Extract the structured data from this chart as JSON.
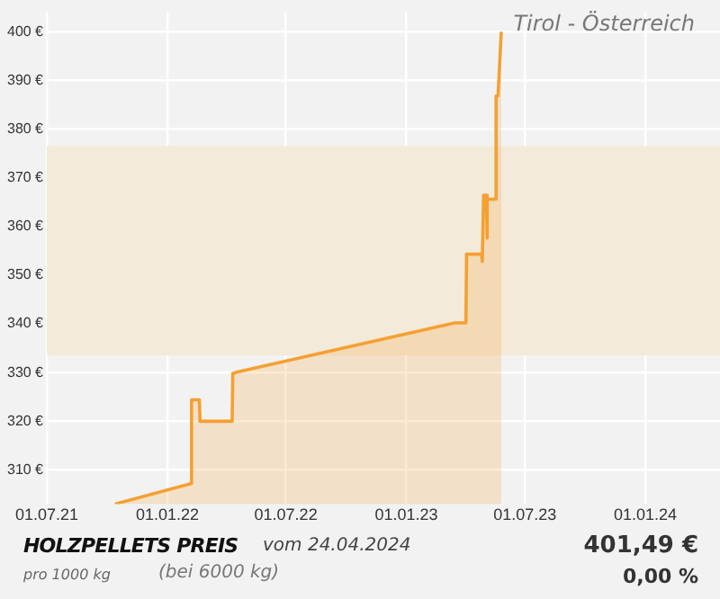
{
  "chart_data": {
    "type": "area",
    "title": "HOLZPELLETS PREIS",
    "subtitle": "vom 24.04.2024",
    "annotations": [
      "Tirol - Österreich",
      "pro 1000 kg",
      "(bei 6000 kg)",
      "401,49 €",
      "0,00 %"
    ],
    "x": [
      "2021-10-13",
      "2022-02-06",
      "2022-02-07",
      "2022-02-19",
      "2022-02-20",
      "2022-04-10",
      "2022-04-11",
      "2022-04-20",
      "2023-03-16",
      "2023-04-02",
      "2023-04-03",
      "2023-04-26",
      "2023-04-27",
      "2023-04-29",
      "2023-05-03",
      "2023-05-04",
      "2023-05-05",
      "2023-05-17",
      "2023-05-18",
      "2023-05-21",
      "2023-05-26"
    ],
    "series": [
      {
        "color": "#f5a032",
        "values": [
          303,
          307.2,
          324.4,
          324.4,
          320,
          320,
          329.8,
          330.2,
          340.2,
          340.2,
          354.3,
          354.3,
          352.8,
          366.4,
          366.4,
          357.6,
          365.6,
          365.6,
          386.8,
          386.8,
          400
        ]
      }
    ],
    "xlim": [
      "2021-07-01",
      "2024-04-24"
    ],
    "xticks": [
      {
        "value": "2021-07-01",
        "label": "01.07.21"
      },
      {
        "value": "2022-01-01",
        "label": "01.01.22"
      },
      {
        "value": "2022-07-01",
        "label": "01.07.22"
      },
      {
        "value": "2023-01-01",
        "label": "01.01.23"
      },
      {
        "value": "2023-07-01",
        "label": "01.07.23"
      },
      {
        "value": "2024-01-01",
        "label": "01.01.24"
      }
    ],
    "ylim": [
      303,
      404
    ],
    "yticks": [
      {
        "value": 310,
        "label": "310 €"
      },
      {
        "value": 320,
        "label": "320 €"
      },
      {
        "value": 330,
        "label": "330 €"
      },
      {
        "value": 340,
        "label": "340 €"
      },
      {
        "value": 350,
        "label": "350 €"
      },
      {
        "value": 360,
        "label": "360 €"
      },
      {
        "value": 370,
        "label": "370 €"
      },
      {
        "value": 380,
        "label": "380 €"
      },
      {
        "value": 390,
        "label": "390 €"
      },
      {
        "value": 400,
        "label": "400 €"
      }
    ],
    "bands": [
      {
        "axis": "y",
        "from": 333.5,
        "to": 376.5,
        "color": "#f3ead9"
      }
    ],
    "grid": true
  }
}
